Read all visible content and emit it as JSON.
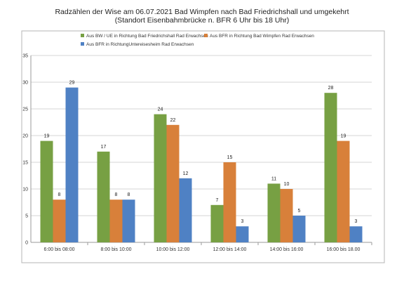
{
  "page": {
    "title": "Radzählen der Wise am 06.07.2021 Bad Wimpfen nach Bad Friedrichshall und umgekehrt",
    "subtitle": "(Standort Eisenbahmbrücke n. BFR 6 Uhr bis 18 Uhr)"
  },
  "chart_data": {
    "type": "bar",
    "title": "Radzählen der Wise am 06.07.2021 Bad Wimpfen nach Bad Friedrichshall und umgekehrt",
    "subtitle": "(Standort Eisenbahmbrücke n. BFR 6 Uhr bis 18 Uhr)",
    "xlabel": "",
    "ylabel": "",
    "ylim": [
      0,
      35
    ],
    "yticks": [
      0,
      5,
      10,
      15,
      20,
      25,
      30,
      35
    ],
    "grid": true,
    "legend_position": "top-left",
    "categories": [
      "6:00 bis 08:00",
      "8:00 bis 10:00",
      "10:00 bis 12:00",
      "12:00 bis 14:00",
      "14:00 bis 16:00",
      "16:00 bis 18.00"
    ],
    "series": [
      {
        "name": "Aus BW / UE in Richtung Bad Friedrichshall Rad Erwachsen",
        "color": "#77a043",
        "values": [
          19,
          17,
          24,
          7,
          11,
          28
        ]
      },
      {
        "name": "Aus BFR in Richtung Bad Wimpfen Rad Erwachsen",
        "color": "#d8803a",
        "values": [
          8,
          8,
          22,
          15,
          10,
          19
        ]
      },
      {
        "name": "Aus BFR in RichtungUntereisesheim Rad Erwachsen",
        "color": "#4f81c4",
        "values": [
          29,
          8,
          12,
          3,
          5,
          3
        ]
      }
    ]
  }
}
